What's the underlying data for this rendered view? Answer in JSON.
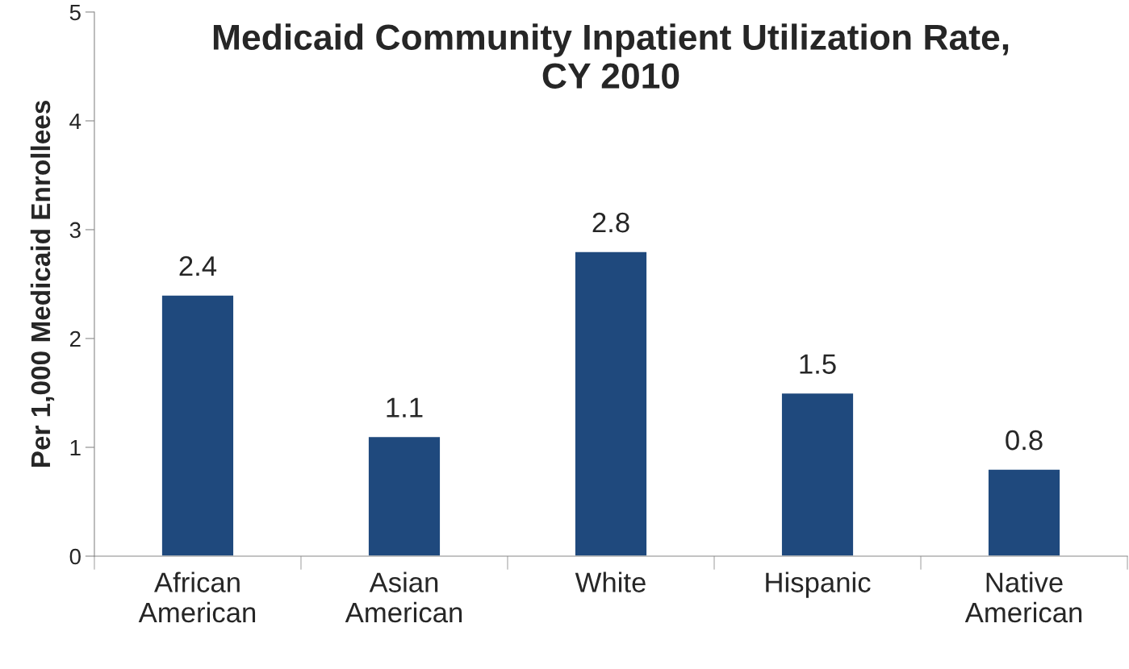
{
  "chart_data": {
    "type": "bar",
    "title": "Medicaid Community Inpatient Utilization Rate,\nCY 2010",
    "ylabel": "Per 1,000 Medicaid Enrollees",
    "categories": [
      "African\nAmerican",
      "Asian\nAmerican",
      "White",
      "Hispanic",
      "Native\nAmerican"
    ],
    "values": [
      2.4,
      1.1,
      2.8,
      1.5,
      0.8
    ],
    "color": "#1f497d",
    "ylim": [
      0,
      5
    ],
    "yticks": [
      0,
      1,
      2,
      3,
      4,
      5
    ],
    "grid": false,
    "data_labels": true
  }
}
